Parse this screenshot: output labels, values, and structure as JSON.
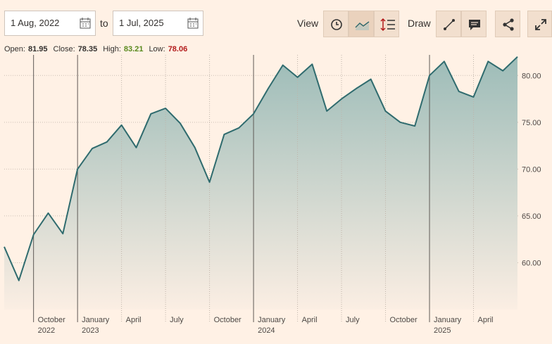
{
  "ui": {
    "from_date": "1 Aug, 2022",
    "to_label": "to",
    "to_date": "1 Jul, 2025",
    "view_label": "View",
    "draw_label": "Draw",
    "stats": [
      {
        "label": "Open:",
        "value": 81.95
      },
      {
        "label": "Close:",
        "value": 78.35
      },
      {
        "label": "High:",
        "value": 83.21,
        "color": "#5a8a1e"
      },
      {
        "label": "Low:",
        "value": 78.06,
        "color": "#b31b1b"
      }
    ]
  },
  "chart_data": {
    "type": "area",
    "x": [
      "2022-08",
      "2022-09",
      "2022-10",
      "2022-11",
      "2022-12",
      "2023-01",
      "2023-02",
      "2023-03",
      "2023-04",
      "2023-05",
      "2023-06",
      "2023-07",
      "2023-08",
      "2023-09",
      "2023-10",
      "2023-11",
      "2023-12",
      "2024-01",
      "2024-02",
      "2024-03",
      "2024-04",
      "2024-05",
      "2024-06",
      "2024-07",
      "2024-08",
      "2024-09",
      "2024-10",
      "2024-11",
      "2024-12",
      "2025-01",
      "2025-02",
      "2025-03",
      "2025-04",
      "2025-05",
      "2025-06",
      "2025-07"
    ],
    "values": [
      61.7,
      58.1,
      63.0,
      65.3,
      63.1,
      70.0,
      72.2,
      72.9,
      74.7,
      72.3,
      75.9,
      76.5,
      74.9,
      72.3,
      68.6,
      73.7,
      74.4,
      75.9,
      78.6,
      81.1,
      79.8,
      81.2,
      76.2,
      77.5,
      78.6,
      79.6,
      76.2,
      75.0,
      74.6,
      80.0,
      81.5,
      78.3,
      77.7,
      81.5,
      80.5,
      82.0
    ],
    "color": "#2f6b6e",
    "ylim": [
      55,
      82.2
    ],
    "yticks": [
      {
        "value": 60,
        "label": "60.00"
      },
      {
        "value": 65,
        "label": "65.00"
      },
      {
        "value": 70,
        "label": "70.00"
      },
      {
        "value": 75,
        "label": "75.00"
      },
      {
        "value": 80,
        "label": "80.00"
      }
    ],
    "xticks": [
      {
        "value": "2022-10",
        "label": "October",
        "year": "2022"
      },
      {
        "value": "2023-01",
        "label": "January",
        "year": "2023"
      },
      {
        "value": "2023-04",
        "label": "April"
      },
      {
        "value": "2023-07",
        "label": "July"
      },
      {
        "value": "2023-10",
        "label": "October"
      },
      {
        "value": "2024-01",
        "label": "January",
        "year": "2024"
      },
      {
        "value": "2024-04",
        "label": "April"
      },
      {
        "value": "2024-07",
        "label": "July"
      },
      {
        "value": "2024-10",
        "label": "October"
      },
      {
        "value": "2025-01",
        "label": "January",
        "year": "2025"
      },
      {
        "value": "2025-04",
        "label": "April"
      }
    ],
    "grid": true
  }
}
